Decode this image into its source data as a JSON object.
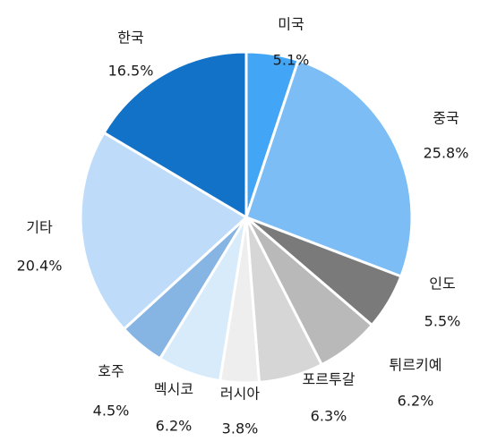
{
  "chart_data": {
    "type": "pie",
    "title": "",
    "slices": [
      {
        "label": "미국",
        "value": 5.1,
        "value_label": "5.1%",
        "color": "#42a5f5"
      },
      {
        "label": "중국",
        "value": 25.8,
        "value_label": "25.8%",
        "color": "#7dbdf5"
      },
      {
        "label": "인도",
        "value": 5.5,
        "value_label": "5.5%",
        "color": "#7a7a7a"
      },
      {
        "label": "튀르키예",
        "value": 6.2,
        "value_label": "6.2%",
        "color": "#b9b9b9"
      },
      {
        "label": "포르투갈",
        "value": 6.3,
        "value_label": "6.3%",
        "color": "#d6d6d6"
      },
      {
        "label": "러시아",
        "value": 3.8,
        "value_label": "3.8%",
        "color": "#eeeeee"
      },
      {
        "label": "멕시코",
        "value": 6.2,
        "value_label": "6.2%",
        "color": "#d8ebfb"
      },
      {
        "label": "호주",
        "value": 4.5,
        "value_label": "4.5%",
        "color": "#86b4e3"
      },
      {
        "label": "기타",
        "value": 20.4,
        "value_label": "20.4%",
        "color": "#bedcfa"
      },
      {
        "label": "한국",
        "value": 16.5,
        "value_label": "16.5%",
        "color": "#1172c8"
      }
    ],
    "start_angle_deg": 0,
    "direction": "clockwise",
    "legend": "none"
  }
}
